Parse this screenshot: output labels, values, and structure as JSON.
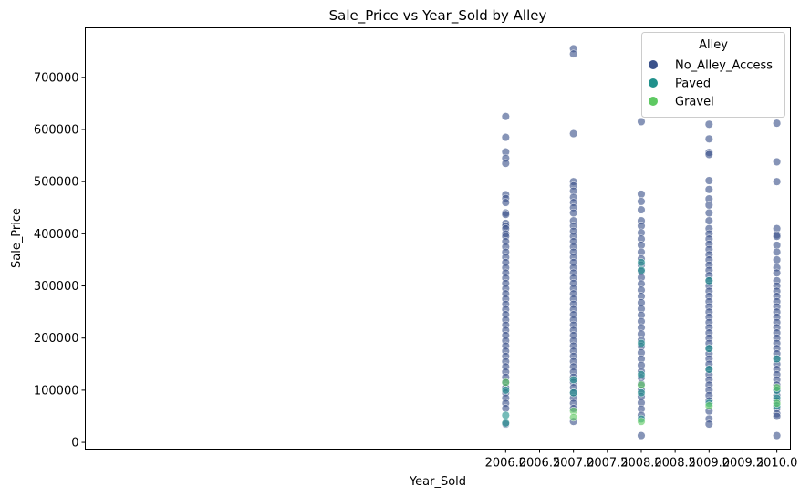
{
  "chart_data": {
    "type": "scatter",
    "title": "Sale_Price vs Year_Sold by Alley",
    "xlabel": "Year_Sold",
    "ylabel": "Sale_Price",
    "xlim": [
      1999.8,
      2010.2
    ],
    "ylim": [
      -13000,
      795000
    ],
    "x_ticks": [
      2006.0,
      2006.5,
      2007.0,
      2007.5,
      2008.0,
      2008.5,
      2009.0,
      2009.5,
      2010.0
    ],
    "x_tick_labels": [
      "2006.0",
      "2006.5",
      "2007.0",
      "2007.5",
      "2008.0",
      "2008.5",
      "2009.0",
      "2009.5",
      "2010.0"
    ],
    "y_ticks": [
      0,
      100000,
      200000,
      300000,
      400000,
      500000,
      600000,
      700000
    ],
    "y_tick_labels": [
      "0",
      "100000",
      "200000",
      "300000",
      "400000",
      "500000",
      "600000",
      "700000"
    ],
    "grid": false,
    "legend": {
      "title": "Alley",
      "placement": "top-right"
    },
    "series": [
      {
        "name": "No_Alley_Access",
        "color": "#3b528b",
        "points": [
          [
            2006,
            625000
          ],
          [
            2006,
            585000
          ],
          [
            2006,
            557000
          ],
          [
            2006,
            545000
          ],
          [
            2006,
            535000
          ],
          [
            2006,
            475000
          ],
          [
            2006,
            468000
          ],
          [
            2006,
            460000
          ],
          [
            2006,
            440000
          ],
          [
            2006,
            437000
          ],
          [
            2006,
            420000
          ],
          [
            2006,
            415000
          ],
          [
            2006,
            410000
          ],
          [
            2006,
            400000
          ],
          [
            2006,
            395000
          ],
          [
            2006,
            385000
          ],
          [
            2006,
            375000
          ],
          [
            2006,
            365000
          ],
          [
            2006,
            355000
          ],
          [
            2006,
            345000
          ],
          [
            2006,
            335000
          ],
          [
            2006,
            325000
          ],
          [
            2006,
            315000
          ],
          [
            2006,
            305000
          ],
          [
            2006,
            295000
          ],
          [
            2006,
            285000
          ],
          [
            2006,
            275000
          ],
          [
            2006,
            265000
          ],
          [
            2006,
            255000
          ],
          [
            2006,
            245000
          ],
          [
            2006,
            235000
          ],
          [
            2006,
            225000
          ],
          [
            2006,
            215000
          ],
          [
            2006,
            205000
          ],
          [
            2006,
            195000
          ],
          [
            2006,
            185000
          ],
          [
            2006,
            175000
          ],
          [
            2006,
            165000
          ],
          [
            2006,
            155000
          ],
          [
            2006,
            145000
          ],
          [
            2006,
            135000
          ],
          [
            2006,
            125000
          ],
          [
            2006,
            115000
          ],
          [
            2006,
            105000
          ],
          [
            2006,
            95000
          ],
          [
            2006,
            85000
          ],
          [
            2006,
            75000
          ],
          [
            2006,
            65000
          ],
          [
            2006,
            35000
          ],
          [
            2007,
            755000
          ],
          [
            2007,
            745000
          ],
          [
            2007,
            592000
          ],
          [
            2007,
            500000
          ],
          [
            2007,
            492000
          ],
          [
            2007,
            482000
          ],
          [
            2007,
            470000
          ],
          [
            2007,
            460000
          ],
          [
            2007,
            450000
          ],
          [
            2007,
            440000
          ],
          [
            2007,
            425000
          ],
          [
            2007,
            415000
          ],
          [
            2007,
            405000
          ],
          [
            2007,
            395000
          ],
          [
            2007,
            385000
          ],
          [
            2007,
            375000
          ],
          [
            2007,
            365000
          ],
          [
            2007,
            355000
          ],
          [
            2007,
            345000
          ],
          [
            2007,
            335000
          ],
          [
            2007,
            325000
          ],
          [
            2007,
            315000
          ],
          [
            2007,
            305000
          ],
          [
            2007,
            295000
          ],
          [
            2007,
            285000
          ],
          [
            2007,
            275000
          ],
          [
            2007,
            265000
          ],
          [
            2007,
            255000
          ],
          [
            2007,
            245000
          ],
          [
            2007,
            235000
          ],
          [
            2007,
            225000
          ],
          [
            2007,
            215000
          ],
          [
            2007,
            205000
          ],
          [
            2007,
            195000
          ],
          [
            2007,
            185000
          ],
          [
            2007,
            175000
          ],
          [
            2007,
            165000
          ],
          [
            2007,
            155000
          ],
          [
            2007,
            145000
          ],
          [
            2007,
            135000
          ],
          [
            2007,
            125000
          ],
          [
            2007,
            115000
          ],
          [
            2007,
            105000
          ],
          [
            2007,
            95000
          ],
          [
            2007,
            85000
          ],
          [
            2007,
            75000
          ],
          [
            2007,
            65000
          ],
          [
            2007,
            40000
          ],
          [
            2008,
            615000
          ],
          [
            2008,
            476000
          ],
          [
            2008,
            462000
          ],
          [
            2008,
            446000
          ],
          [
            2008,
            425000
          ],
          [
            2008,
            415000
          ],
          [
            2008,
            402000
          ],
          [
            2008,
            390000
          ],
          [
            2008,
            378000
          ],
          [
            2008,
            365000
          ],
          [
            2008,
            352000
          ],
          [
            2008,
            340000
          ],
          [
            2008,
            328000
          ],
          [
            2008,
            316000
          ],
          [
            2008,
            304000
          ],
          [
            2008,
            292000
          ],
          [
            2008,
            280000
          ],
          [
            2008,
            268000
          ],
          [
            2008,
            256000
          ],
          [
            2008,
            244000
          ],
          [
            2008,
            232000
          ],
          [
            2008,
            220000
          ],
          [
            2008,
            208000
          ],
          [
            2008,
            196000
          ],
          [
            2008,
            184000
          ],
          [
            2008,
            172000
          ],
          [
            2008,
            160000
          ],
          [
            2008,
            148000
          ],
          [
            2008,
            136000
          ],
          [
            2008,
            124000
          ],
          [
            2008,
            112000
          ],
          [
            2008,
            100000
          ],
          [
            2008,
            88000
          ],
          [
            2008,
            76000
          ],
          [
            2008,
            64000
          ],
          [
            2008,
            52000
          ],
          [
            2008,
            13000
          ],
          [
            2009,
            610000
          ],
          [
            2009,
            582000
          ],
          [
            2009,
            556000
          ],
          [
            2009,
            552000
          ],
          [
            2009,
            502000
          ],
          [
            2009,
            485000
          ],
          [
            2009,
            467000
          ],
          [
            2009,
            455000
          ],
          [
            2009,
            440000
          ],
          [
            2009,
            425000
          ],
          [
            2009,
            410000
          ],
          [
            2009,
            400000
          ],
          [
            2009,
            390000
          ],
          [
            2009,
            380000
          ],
          [
            2009,
            370000
          ],
          [
            2009,
            360000
          ],
          [
            2009,
            350000
          ],
          [
            2009,
            340000
          ],
          [
            2009,
            330000
          ],
          [
            2009,
            320000
          ],
          [
            2009,
            310000
          ],
          [
            2009,
            300000
          ],
          [
            2009,
            290000
          ],
          [
            2009,
            280000
          ],
          [
            2009,
            270000
          ],
          [
            2009,
            260000
          ],
          [
            2009,
            250000
          ],
          [
            2009,
            240000
          ],
          [
            2009,
            230000
          ],
          [
            2009,
            220000
          ],
          [
            2009,
            210000
          ],
          [
            2009,
            200000
          ],
          [
            2009,
            190000
          ],
          [
            2009,
            180000
          ],
          [
            2009,
            170000
          ],
          [
            2009,
            160000
          ],
          [
            2009,
            150000
          ],
          [
            2009,
            140000
          ],
          [
            2009,
            130000
          ],
          [
            2009,
            120000
          ],
          [
            2009,
            110000
          ],
          [
            2009,
            100000
          ],
          [
            2009,
            90000
          ],
          [
            2009,
            80000
          ],
          [
            2009,
            60000
          ],
          [
            2009,
            45000
          ],
          [
            2009,
            35000
          ],
          [
            2010,
            612000
          ],
          [
            2010,
            538000
          ],
          [
            2010,
            500000
          ],
          [
            2010,
            410000
          ],
          [
            2010,
            398000
          ],
          [
            2010,
            395000
          ],
          [
            2010,
            378000
          ],
          [
            2010,
            365000
          ],
          [
            2010,
            350000
          ],
          [
            2010,
            335000
          ],
          [
            2010,
            325000
          ],
          [
            2010,
            310000
          ],
          [
            2010,
            300000
          ],
          [
            2010,
            290000
          ],
          [
            2010,
            280000
          ],
          [
            2010,
            270000
          ],
          [
            2010,
            260000
          ],
          [
            2010,
            250000
          ],
          [
            2010,
            240000
          ],
          [
            2010,
            230000
          ],
          [
            2010,
            220000
          ],
          [
            2010,
            210000
          ],
          [
            2010,
            200000
          ],
          [
            2010,
            190000
          ],
          [
            2010,
            180000
          ],
          [
            2010,
            170000
          ],
          [
            2010,
            160000
          ],
          [
            2010,
            150000
          ],
          [
            2010,
            140000
          ],
          [
            2010,
            130000
          ],
          [
            2010,
            120000
          ],
          [
            2010,
            110000
          ],
          [
            2010,
            100000
          ],
          [
            2010,
            90000
          ],
          [
            2010,
            80000
          ],
          [
            2010,
            65000
          ],
          [
            2010,
            55000
          ],
          [
            2010,
            50000
          ],
          [
            2010,
            13000
          ]
        ]
      },
      {
        "name": "Paved",
        "color": "#21918c",
        "points": [
          [
            2006,
            100000
          ],
          [
            2006,
            52000
          ],
          [
            2006,
            37000
          ],
          [
            2007,
            120000
          ],
          [
            2007,
            95000
          ],
          [
            2008,
            345000
          ],
          [
            2008,
            330000
          ],
          [
            2008,
            190000
          ],
          [
            2008,
            130000
          ],
          [
            2008,
            95000
          ],
          [
            2008,
            45000
          ],
          [
            2009,
            310000
          ],
          [
            2009,
            180000
          ],
          [
            2009,
            140000
          ],
          [
            2009,
            75000
          ],
          [
            2010,
            160000
          ],
          [
            2010,
            100000
          ],
          [
            2010,
            85000
          ],
          [
            2010,
            70000
          ]
        ]
      },
      {
        "name": "Gravel",
        "color": "#5ec962",
        "points": [
          [
            2006,
            115000
          ],
          [
            2007,
            60000
          ],
          [
            2007,
            48000
          ],
          [
            2008,
            110000
          ],
          [
            2008,
            40000
          ],
          [
            2009,
            70000
          ],
          [
            2010,
            105000
          ],
          [
            2010,
            75000
          ]
        ]
      }
    ]
  }
}
